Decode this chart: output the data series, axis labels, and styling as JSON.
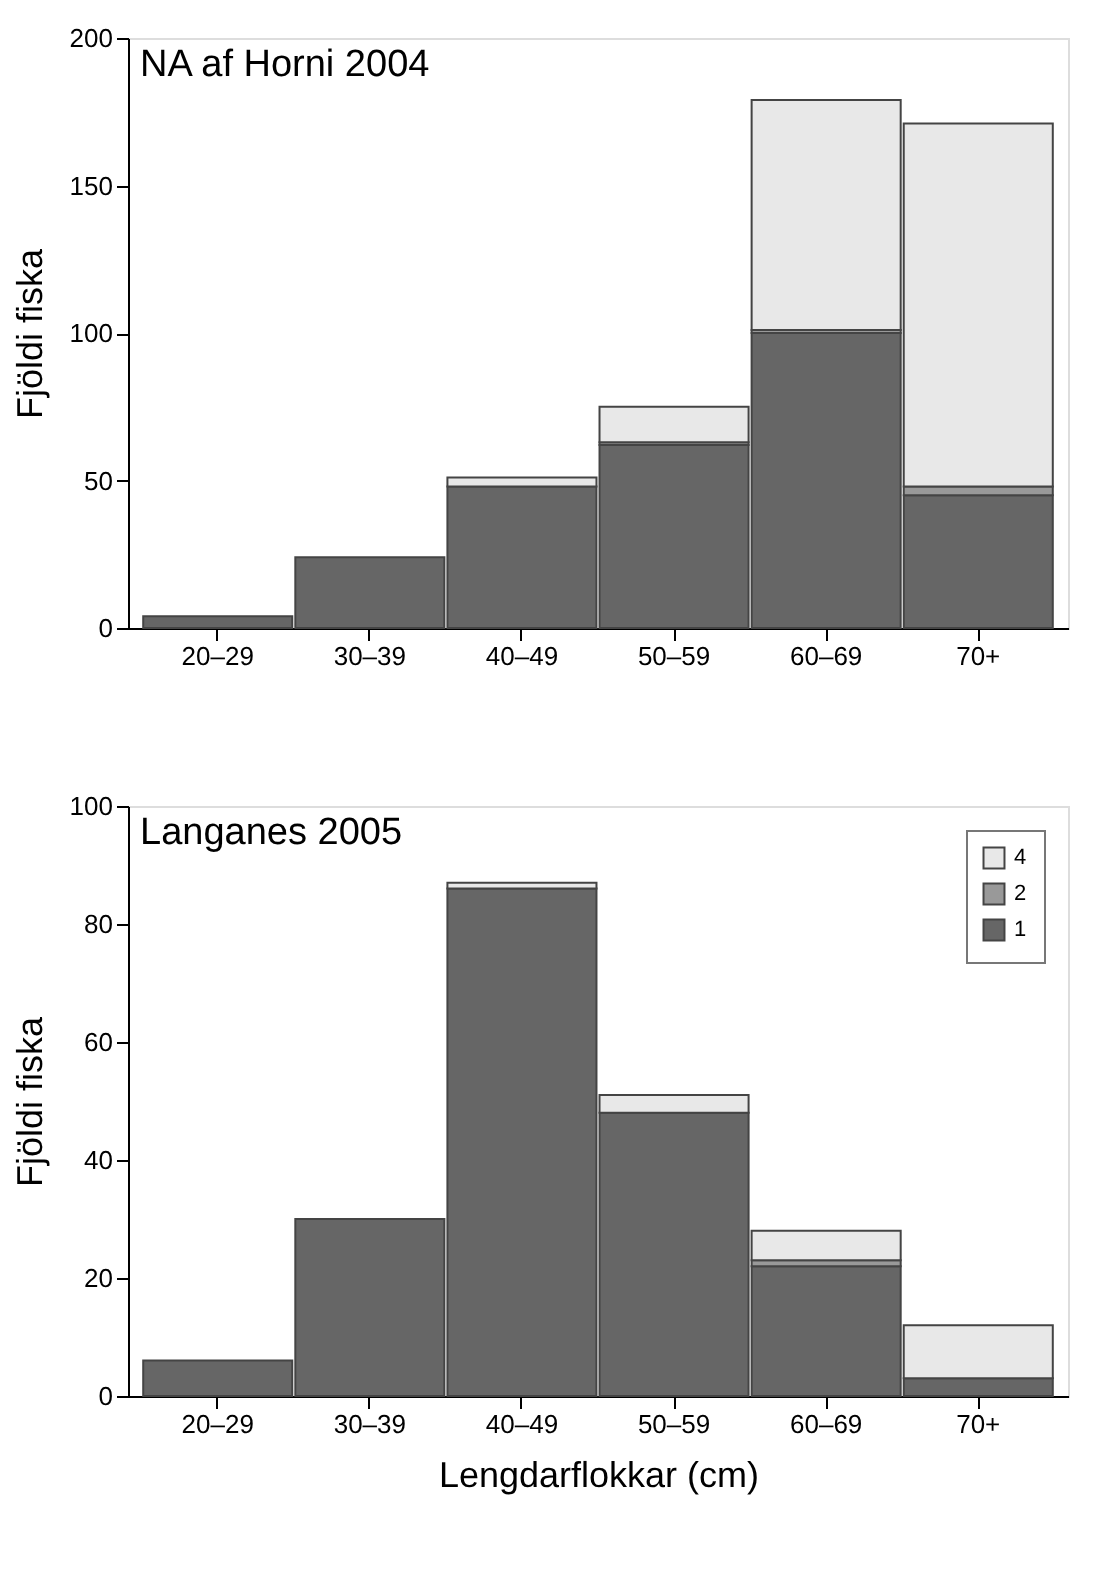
{
  "chart_data": [
    {
      "type": "bar",
      "title": "NA af Horni 2004",
      "ylabel": "Fjöldi fiska",
      "categories": [
        "20–29",
        "30–39",
        "40–49",
        "50–59",
        "60–69",
        "70+"
      ],
      "stacked": true,
      "ylim": [
        0,
        200
      ],
      "yticks": [
        0,
        50,
        100,
        150,
        200
      ],
      "grid": false,
      "legend": false,
      "series": [
        {
          "color": "#666666",
          "values": [
            4,
            24,
            48,
            62,
            100,
            45
          ]
        },
        {
          "color": "#999999",
          "values": [
            0,
            0,
            0,
            1,
            1,
            3
          ]
        },
        {
          "color": "#e8e8e8",
          "values": [
            0,
            0,
            3,
            12,
            78,
            123
          ]
        }
      ]
    },
    {
      "type": "bar",
      "title": "Langanes 2005",
      "ylabel": "Fjöldi fiska",
      "xlabel": "Lengdarflokkar (cm)",
      "categories": [
        "20–29",
        "30–39",
        "40–49",
        "50–59",
        "60–69",
        "70+"
      ],
      "stacked": true,
      "ylim": [
        0,
        100
      ],
      "yticks": [
        0,
        20,
        40,
        60,
        80,
        100
      ],
      "grid": false,
      "legend": "top right",
      "series": [
        {
          "name": "1",
          "color": "#666666",
          "values": [
            6,
            30,
            86,
            48,
            22,
            3
          ]
        },
        {
          "name": "2",
          "color": "#999999",
          "values": [
            0,
            0,
            0,
            0,
            1,
            0
          ]
        },
        {
          "name": "4",
          "color": "#e8e8e8",
          "values": [
            0,
            0,
            1,
            3,
            5,
            9
          ]
        }
      ]
    }
  ]
}
